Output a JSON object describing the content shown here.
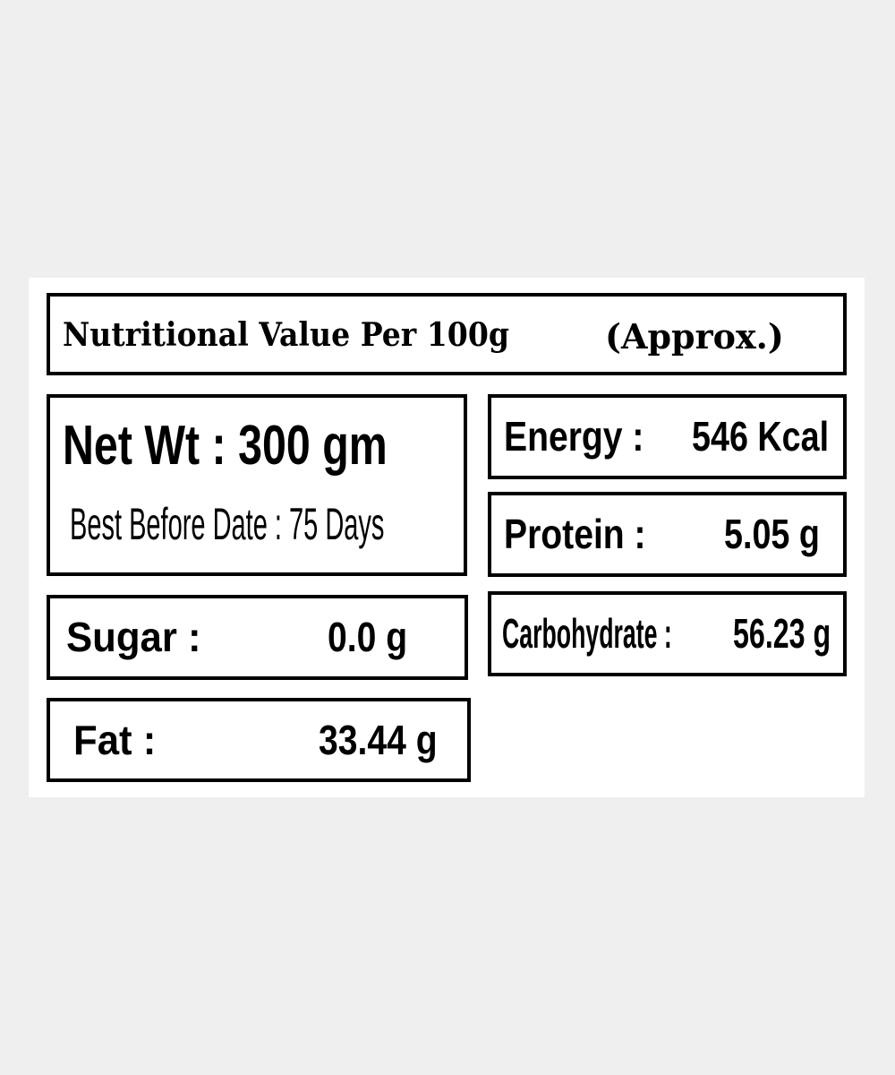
{
  "label": {
    "title": "Nutritional Value Per 100g",
    "title_note": "(Approx.)",
    "net_weight": "Net Wt : 300 gm",
    "best_before": "Best Before Date : 75 Days",
    "items": [
      {
        "name": "Energy :",
        "value": "546 Kcal"
      },
      {
        "name": "Protein :",
        "value": "5.05 g"
      },
      {
        "name": "Carbohydrate :",
        "value": "56.23 g"
      },
      {
        "name": "Sugar :",
        "value": "0.0 g"
      },
      {
        "name": "Fat :",
        "value": "33.44 g"
      }
    ]
  }
}
